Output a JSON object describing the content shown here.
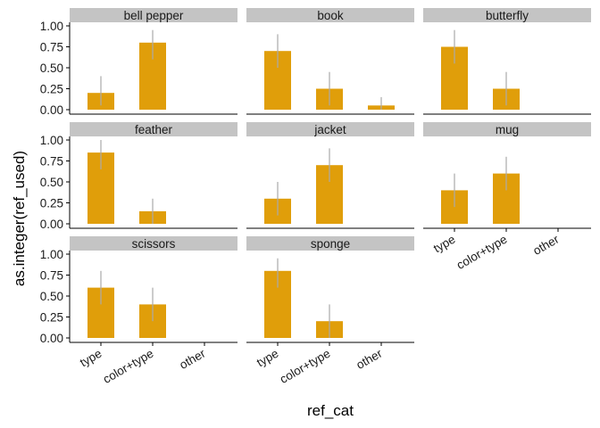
{
  "colors": {
    "bar": "#E09E0A",
    "error_bar": "#AAAAAA",
    "strip": "#C4C4C4",
    "axis": "#000000"
  },
  "chart_data": {
    "type": "bar",
    "layout": "facet_wrap",
    "facet_columns": 3,
    "xlabel": "ref_cat",
    "ylabel": "as.integer(ref_used)",
    "categories": [
      "type",
      "color+type",
      "other"
    ],
    "ylim": [
      0,
      1
    ],
    "y_ticks": [
      "0.00",
      "0.25",
      "0.50",
      "0.75",
      "1.00"
    ],
    "grid": false,
    "panels": [
      {
        "title": "bell pepper",
        "values": [
          0.2,
          0.8,
          null
        ],
        "err_low": [
          0.05,
          0.6,
          null
        ],
        "err_high": [
          0.4,
          0.95,
          null
        ]
      },
      {
        "title": "book",
        "values": [
          0.7,
          0.25,
          0.05
        ],
        "err_low": [
          0.5,
          0.05,
          0.0
        ],
        "err_high": [
          0.9,
          0.45,
          0.15
        ]
      },
      {
        "title": "butterfly",
        "values": [
          0.75,
          0.25,
          null
        ],
        "err_low": [
          0.55,
          0.05,
          null
        ],
        "err_high": [
          0.95,
          0.45,
          null
        ]
      },
      {
        "title": "feather",
        "values": [
          0.85,
          0.15,
          null
        ],
        "err_low": [
          0.65,
          0.0,
          null
        ],
        "err_high": [
          1.0,
          0.3,
          null
        ]
      },
      {
        "title": "jacket",
        "values": [
          0.3,
          0.7,
          null
        ],
        "err_low": [
          0.1,
          0.5,
          null
        ],
        "err_high": [
          0.5,
          0.9,
          null
        ]
      },
      {
        "title": "mug",
        "values": [
          0.4,
          0.6,
          null
        ],
        "err_low": [
          0.2,
          0.4,
          null
        ],
        "err_high": [
          0.6,
          0.8,
          null
        ]
      },
      {
        "title": "scissors",
        "values": [
          0.6,
          0.4,
          null
        ],
        "err_low": [
          0.4,
          0.2,
          null
        ],
        "err_high": [
          0.8,
          0.6,
          null
        ]
      },
      {
        "title": "sponge",
        "values": [
          0.8,
          0.2,
          null
        ],
        "err_low": [
          0.6,
          0.0,
          null
        ],
        "err_high": [
          0.95,
          0.4,
          null
        ]
      }
    ]
  }
}
